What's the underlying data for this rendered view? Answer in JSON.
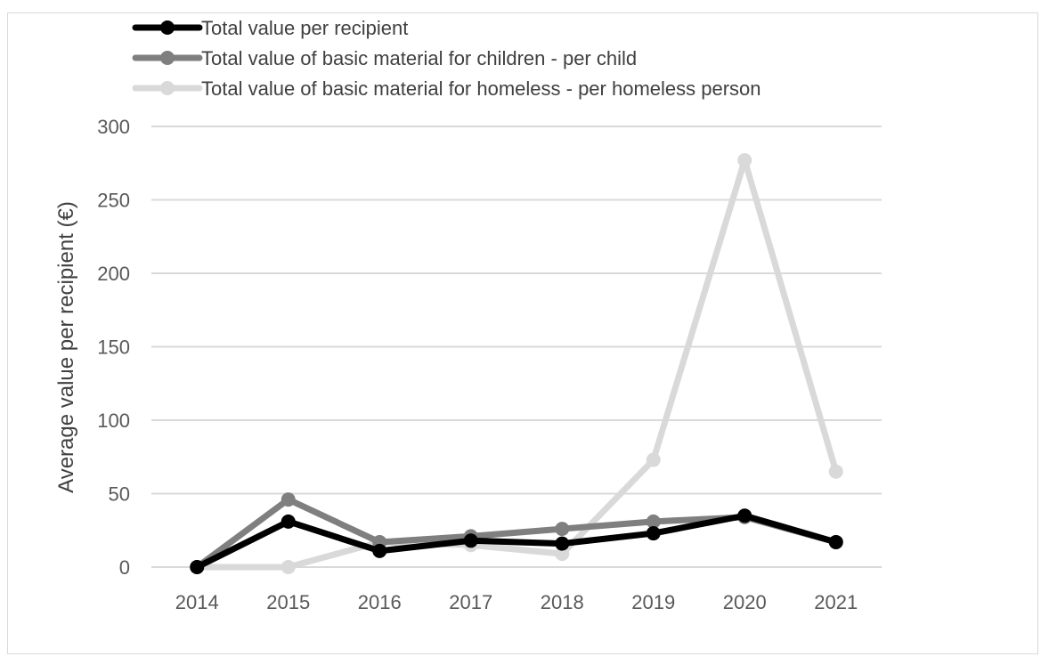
{
  "chart_data": {
    "type": "line",
    "title": "",
    "xlabel": "",
    "ylabel": "Average value per recipient (€)",
    "categories": [
      "2014",
      "2015",
      "2016",
      "2017",
      "2018",
      "2019",
      "2020",
      "2021"
    ],
    "ylim": [
      0,
      300
    ],
    "yticks": [
      0,
      50,
      100,
      150,
      200,
      250,
      300
    ],
    "grid": "horizontal",
    "legend_position": "top-left",
    "series": [
      {
        "name": "Total value per recipient",
        "color": "#000000",
        "values": [
          0,
          31,
          11,
          18,
          16,
          23,
          35,
          17
        ]
      },
      {
        "name": "Total value of basic material for children - per child",
        "color": "#7f7f7f",
        "values": [
          0,
          46,
          17,
          21,
          26,
          31,
          34,
          17
        ]
      },
      {
        "name": "Total value of basic material for homeless - per homeless person",
        "color": "#d9d9d9",
        "values": [
          0,
          0,
          17,
          15,
          9,
          73,
          277,
          65
        ]
      }
    ]
  }
}
